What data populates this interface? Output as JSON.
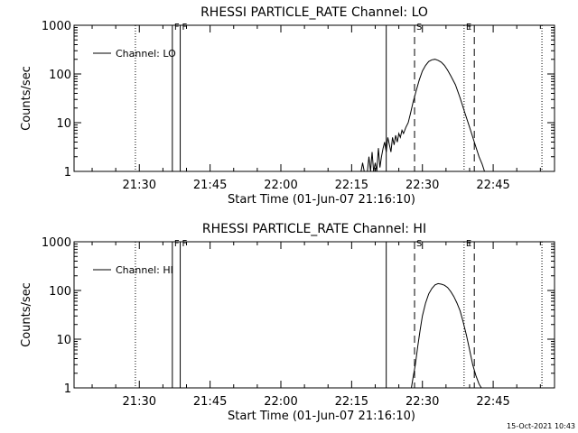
{
  "chart_data": [
    {
      "type": "line",
      "title": "RHESSI PARTICLE_RATE Channel: LO",
      "xlabel": "Start Time (01-Jun-07 21:16:10)",
      "ylabel": "Counts/sec",
      "yscale": "log",
      "ylim": [
        1,
        1000
      ],
      "xlim": [
        "21:16:10",
        "22:58:00"
      ],
      "x_ticks": [
        "21:30",
        "21:45",
        "22:00",
        "22:15",
        "22:30",
        "22:45"
      ],
      "y_ticks": [
        "1",
        "10",
        "100",
        "1000"
      ],
      "legend": {
        "label": "Channel: LO",
        "position": "top-left"
      },
      "markers": [
        {
          "time": "21:29:10",
          "style": "dotted",
          "label": ""
        },
        {
          "time": "21:37:00",
          "style": "solid",
          "label": "F"
        },
        {
          "time": "21:38:40",
          "style": "solid",
          "label": "F"
        },
        {
          "time": "22:22:20",
          "style": "solid",
          "label": ""
        },
        {
          "time": "22:28:20",
          "style": "dashed",
          "label": "S"
        },
        {
          "time": "22:38:50",
          "style": "dotted",
          "label": "E"
        },
        {
          "time": "22:41:00",
          "style": "dashed",
          "label": ""
        },
        {
          "time": "22:55:20",
          "style": "dotted",
          "label": ""
        }
      ],
      "series": [
        {
          "name": "Channel: LO",
          "x": [
            "22:17:00",
            "22:17:20",
            "22:17:40",
            "22:18:00",
            "22:18:20",
            "22:18:40",
            "22:19:00",
            "22:19:20",
            "22:19:40",
            "22:20:00",
            "22:20:20",
            "22:20:40",
            "22:21:00",
            "22:21:20",
            "22:21:40",
            "22:22:00",
            "22:22:20",
            "22:22:40",
            "22:23:00",
            "22:23:20",
            "22:23:40",
            "22:24:00",
            "22:24:20",
            "22:24:40",
            "22:25:00",
            "22:25:20",
            "22:25:40",
            "22:26:00",
            "22:26:30",
            "22:27:00",
            "22:27:30",
            "22:28:00",
            "22:28:40",
            "22:29:20",
            "22:30:00",
            "22:30:40",
            "22:31:20",
            "22:32:00",
            "22:32:40",
            "22:33:20",
            "22:34:00",
            "22:34:40",
            "22:35:20",
            "22:36:00",
            "22:37:00",
            "22:38:00",
            "22:39:00",
            "22:40:00",
            "22:41:00",
            "22:42:00",
            "22:42:40",
            "22:43:10"
          ],
          "values": [
            1,
            1.5,
            1,
            1,
            1,
            2,
            1,
            2.5,
            1,
            1.5,
            1,
            3,
            1.2,
            2,
            3,
            4,
            2.5,
            5,
            3.5,
            2.5,
            5,
            3.5,
            5.5,
            4,
            6,
            5,
            7,
            6,
            8,
            10,
            16,
            26,
            45,
            75,
            115,
            150,
            180,
            195,
            200,
            190,
            175,
            150,
            120,
            92,
            60,
            32,
            16,
            8,
            4,
            2,
            1.4,
            1
          ]
        }
      ]
    },
    {
      "type": "line",
      "title": "RHESSI PARTICLE_RATE Channel: HI",
      "xlabel": "Start Time (01-Jun-07 21:16:10)",
      "ylabel": "Counts/sec",
      "yscale": "log",
      "ylim": [
        1,
        1000
      ],
      "xlim": [
        "21:16:10",
        "22:58:00"
      ],
      "x_ticks": [
        "21:30",
        "21:45",
        "22:00",
        "22:15",
        "22:30",
        "22:45"
      ],
      "y_ticks": [
        "1",
        "10",
        "100",
        "1000"
      ],
      "legend": {
        "label": "Channel: HI",
        "position": "top-left"
      },
      "markers": [
        {
          "time": "21:29:10",
          "style": "dotted",
          "label": ""
        },
        {
          "time": "21:37:00",
          "style": "solid",
          "label": "F"
        },
        {
          "time": "21:38:40",
          "style": "solid",
          "label": "F"
        },
        {
          "time": "22:22:20",
          "style": "solid",
          "label": ""
        },
        {
          "time": "22:28:20",
          "style": "dashed",
          "label": "S"
        },
        {
          "time": "22:38:50",
          "style": "dotted",
          "label": "E"
        },
        {
          "time": "22:41:00",
          "style": "dashed",
          "label": ""
        },
        {
          "time": "22:55:20",
          "style": "dotted",
          "label": ""
        }
      ],
      "series": [
        {
          "name": "Channel: HI",
          "x": [
            "22:27:40",
            "22:28:00",
            "22:28:30",
            "22:29:00",
            "22:29:30",
            "22:30:00",
            "22:30:40",
            "22:31:20",
            "22:32:00",
            "22:32:40",
            "22:33:20",
            "22:34:00",
            "22:34:40",
            "22:35:20",
            "22:36:00",
            "22:36:40",
            "22:37:20",
            "22:38:00",
            "22:38:40",
            "22:39:20",
            "22:40:00",
            "22:40:40",
            "22:41:20",
            "22:42:00",
            "22:42:30"
          ],
          "values": [
            1,
            1.6,
            3,
            7,
            15,
            30,
            55,
            85,
            110,
            130,
            138,
            135,
            128,
            115,
            95,
            75,
            55,
            38,
            22,
            12,
            6,
            3,
            1.8,
            1.2,
            1
          ]
        }
      ]
    }
  ],
  "footer": {
    "timestamp": "15-Oct-2021 10:43"
  }
}
